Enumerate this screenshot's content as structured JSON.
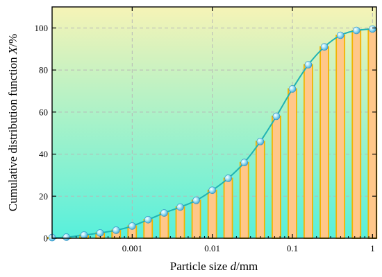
{
  "chart_data": {
    "type": "bar",
    "overlay": "line",
    "title": "",
    "xlabel_prefix": "Particle size ",
    "xlabel_var": "d",
    "xlabel_suffix": "/mm",
    "ylabel_prefix": "Cumulative distribution function ",
    "ylabel_var": "X",
    "ylabel_suffix": "/%",
    "x_scale": "log",
    "xlim": [
      0.0001,
      1.12
    ],
    "ylim": [
      0,
      110
    ],
    "x_ticks": [
      0.001,
      0.01,
      0.1,
      1
    ],
    "x_tick_labels": [
      "0.001",
      "0.01",
      "0.1",
      "1"
    ],
    "y_ticks": [
      0,
      20,
      40,
      60,
      80,
      100
    ],
    "y_tick_labels": [
      "0",
      "20",
      "40",
      "60",
      "80",
      "100"
    ],
    "grid": true,
    "x": [
      0.0001,
      0.000151,
      0.000251,
      0.000398,
      0.000631,
      0.001,
      0.00158,
      0.00251,
      0.00398,
      0.00631,
      0.01,
      0.0158,
      0.0251,
      0.0398,
      0.0631,
      0.1,
      0.158,
      0.251,
      0.398,
      0.631,
      1.0
    ],
    "y": [
      0.3,
      0.5,
      1.5,
      2.5,
      3.8,
      5.8,
      8.8,
      12.0,
      14.8,
      18.0,
      22.8,
      28.5,
      36.0,
      46.0,
      58.0,
      71.0,
      82.5,
      91.0,
      96.5,
      98.8,
      99.5
    ],
    "colors": {
      "bar_fill": "#ffc78a",
      "bar_stroke": "#f1b400",
      "line": "#1fb3b3",
      "marker": "#7fd0ee",
      "bg_top": "#f6f3b6",
      "bg_bottom": "#57f0dc",
      "grid": "#b7b7b7"
    }
  }
}
